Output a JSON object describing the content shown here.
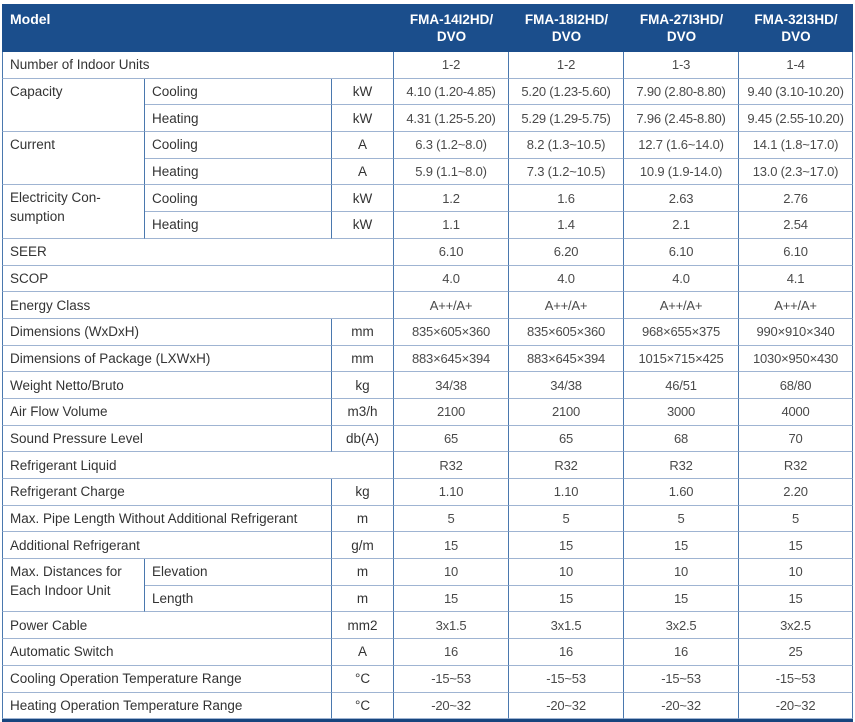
{
  "colors": {
    "header_bg": "#1b4e8c",
    "header_text": "#ffffff",
    "vertical_border": "#4a78ae",
    "horizontal_border": "#9fb4d2",
    "outer_bottom_border": "#17457e",
    "body_text": "#4a4a4a"
  },
  "header": {
    "model_label": "Model",
    "models": [
      "FMA-14I2HD/\nDVO",
      "FMA-18I2HD/\nDVO",
      "FMA-27I3HD/\nDVO",
      "FMA-32I3HD/\nDVO"
    ]
  },
  "table": {
    "rows": [
      [
        {
          "t": "Number of Indoor Units",
          "k": "label",
          "cs": 3
        },
        {
          "t": "1-2"
        },
        {
          "t": "1-2"
        },
        {
          "t": "1-3"
        },
        {
          "t": "1-4"
        }
      ],
      [
        {
          "t": "Capacity",
          "k": "label",
          "rs": 2
        },
        {
          "t": "Cooling",
          "k": "sub"
        },
        {
          "t": "kW",
          "k": "unit"
        },
        {
          "t": "4.10 (1.20-4.85)"
        },
        {
          "t": "5.20 (1.23-5.60)"
        },
        {
          "t": "7.90 (2.80-8.80)"
        },
        {
          "t": "9.40 (3.10-10.20)"
        }
      ],
      [
        {
          "t": "Heating",
          "k": "sub"
        },
        {
          "t": "kW",
          "k": "unit"
        },
        {
          "t": "4.31 (1.25-5.20)"
        },
        {
          "t": "5.29 (1.29-5.75)"
        },
        {
          "t": "7.96 (2.45-8.80)"
        },
        {
          "t": "9.45 (2.55-10.20)"
        }
      ],
      [
        {
          "t": "Current",
          "k": "label",
          "rs": 2
        },
        {
          "t": "Cooling",
          "k": "sub"
        },
        {
          "t": "A",
          "k": "unit"
        },
        {
          "t": "6.3 (1.2~8.0)"
        },
        {
          "t": "8.2 (1.3~10.5)"
        },
        {
          "t": "12.7 (1.6~14.0)"
        },
        {
          "t": "14.1 (1.8~17.0)"
        }
      ],
      [
        {
          "t": "Heating",
          "k": "sub"
        },
        {
          "t": "A",
          "k": "unit"
        },
        {
          "t": "5.9 (1.1~8.0)"
        },
        {
          "t": "7.3 (1.2~10.5)"
        },
        {
          "t": "10.9 (1.9-14.0)"
        },
        {
          "t": "13.0 (2.3~17.0)"
        }
      ],
      [
        {
          "t": "Electricity Con-\nsumption",
          "k": "label",
          "rs": 2
        },
        {
          "t": "Cooling",
          "k": "sub"
        },
        {
          "t": "kW",
          "k": "unit"
        },
        {
          "t": "1.2"
        },
        {
          "t": "1.6"
        },
        {
          "t": "2.63"
        },
        {
          "t": "2.76"
        }
      ],
      [
        {
          "t": "Heating",
          "k": "sub"
        },
        {
          "t": "kW",
          "k": "unit"
        },
        {
          "t": "1.1"
        },
        {
          "t": "1.4"
        },
        {
          "t": "2.1"
        },
        {
          "t": "2.54"
        }
      ],
      [
        {
          "t": "SEER",
          "k": "label",
          "cs": 3
        },
        {
          "t": "6.10"
        },
        {
          "t": "6.20"
        },
        {
          "t": "6.10"
        },
        {
          "t": "6.10"
        }
      ],
      [
        {
          "t": "SCOP",
          "k": "label",
          "cs": 3
        },
        {
          "t": "4.0"
        },
        {
          "t": "4.0"
        },
        {
          "t": "4.0"
        },
        {
          "t": "4.1"
        }
      ],
      [
        {
          "t": "Energy Class",
          "k": "label",
          "cs": 3
        },
        {
          "t": "A++/A+"
        },
        {
          "t": "A++/A+"
        },
        {
          "t": "A++/A+"
        },
        {
          "t": "A++/A+"
        }
      ],
      [
        {
          "t": "Dimensions (WxDxH)",
          "k": "label",
          "cs": 2
        },
        {
          "t": "mm",
          "k": "unit"
        },
        {
          "t": "835×605×360"
        },
        {
          "t": "835×605×360"
        },
        {
          "t": "968×655×375"
        },
        {
          "t": "990×910×340"
        }
      ],
      [
        {
          "t": "Dimensions of Package (LXWxH)",
          "k": "label",
          "cs": 2
        },
        {
          "t": "mm",
          "k": "unit"
        },
        {
          "t": "883×645×394"
        },
        {
          "t": "883×645×394"
        },
        {
          "t": "1015×715×425"
        },
        {
          "t": "1030×950×430"
        }
      ],
      [
        {
          "t": "Weight Netto/Bruto",
          "k": "label",
          "cs": 2
        },
        {
          "t": "kg",
          "k": "unit"
        },
        {
          "t": "34/38"
        },
        {
          "t": "34/38"
        },
        {
          "t": "46/51"
        },
        {
          "t": "68/80"
        }
      ],
      [
        {
          "t": "Air Flow Volume",
          "k": "label",
          "cs": 2
        },
        {
          "t": "m3/h",
          "k": "unit"
        },
        {
          "t": "2100"
        },
        {
          "t": "2100"
        },
        {
          "t": "3000"
        },
        {
          "t": "4000"
        }
      ],
      [
        {
          "t": "Sound Pressure Level",
          "k": "label",
          "cs": 2
        },
        {
          "t": "db(A)",
          "k": "unit"
        },
        {
          "t": "65"
        },
        {
          "t": "65"
        },
        {
          "t": "68"
        },
        {
          "t": "70"
        }
      ],
      [
        {
          "t": "Refrigerant Liquid",
          "k": "label",
          "cs": 3
        },
        {
          "t": "R32"
        },
        {
          "t": "R32"
        },
        {
          "t": "R32"
        },
        {
          "t": "R32"
        }
      ],
      [
        {
          "t": "Refrigerant Charge",
          "k": "label",
          "cs": 2
        },
        {
          "t": "kg",
          "k": "unit"
        },
        {
          "t": "1.10"
        },
        {
          "t": "1.10"
        },
        {
          "t": "1.60"
        },
        {
          "t": "2.20"
        }
      ],
      [
        {
          "t": "Max. Pipe Length Without Additional Refrigerant",
          "k": "label",
          "cs": 2
        },
        {
          "t": "m",
          "k": "unit"
        },
        {
          "t": "5"
        },
        {
          "t": "5"
        },
        {
          "t": "5"
        },
        {
          "t": "5"
        }
      ],
      [
        {
          "t": "Additional Refrigerant",
          "k": "label",
          "cs": 2
        },
        {
          "t": "g/m",
          "k": "unit"
        },
        {
          "t": "15"
        },
        {
          "t": "15"
        },
        {
          "t": "15"
        },
        {
          "t": "15"
        }
      ],
      [
        {
          "t": "Max. Distances for\nEach Indoor Unit",
          "k": "label",
          "rs": 2
        },
        {
          "t": "Elevation",
          "k": "sub"
        },
        {
          "t": "m",
          "k": "unit"
        },
        {
          "t": "10"
        },
        {
          "t": "10"
        },
        {
          "t": "10"
        },
        {
          "t": "10"
        }
      ],
      [
        {
          "t": "Length",
          "k": "sub"
        },
        {
          "t": "m",
          "k": "unit"
        },
        {
          "t": "15"
        },
        {
          "t": "15"
        },
        {
          "t": "15"
        },
        {
          "t": "15"
        }
      ],
      [
        {
          "t": "Power Cable",
          "k": "label",
          "cs": 2
        },
        {
          "t": "mm2",
          "k": "unit"
        },
        {
          "t": "3x1.5"
        },
        {
          "t": "3x1.5"
        },
        {
          "t": "3x2.5"
        },
        {
          "t": "3x2.5"
        }
      ],
      [
        {
          "t": "Automatic Switch",
          "k": "label",
          "cs": 2
        },
        {
          "t": "A",
          "k": "unit"
        },
        {
          "t": "16"
        },
        {
          "t": "16"
        },
        {
          "t": "16"
        },
        {
          "t": "25"
        }
      ],
      [
        {
          "t": "Cooling Operation Temperature Range",
          "k": "label",
          "cs": 2
        },
        {
          "t": "°C",
          "k": "unit"
        },
        {
          "t": "-15~53"
        },
        {
          "t": "-15~53"
        },
        {
          "t": "-15~53"
        },
        {
          "t": "-15~53"
        }
      ],
      [
        {
          "t": "Heating Operation Temperature Range",
          "k": "label",
          "cs": 2
        },
        {
          "t": "°C",
          "k": "unit"
        },
        {
          "t": "-20~32"
        },
        {
          "t": "-20~32"
        },
        {
          "t": "-20~32"
        },
        {
          "t": "-20~32"
        }
      ]
    ]
  }
}
